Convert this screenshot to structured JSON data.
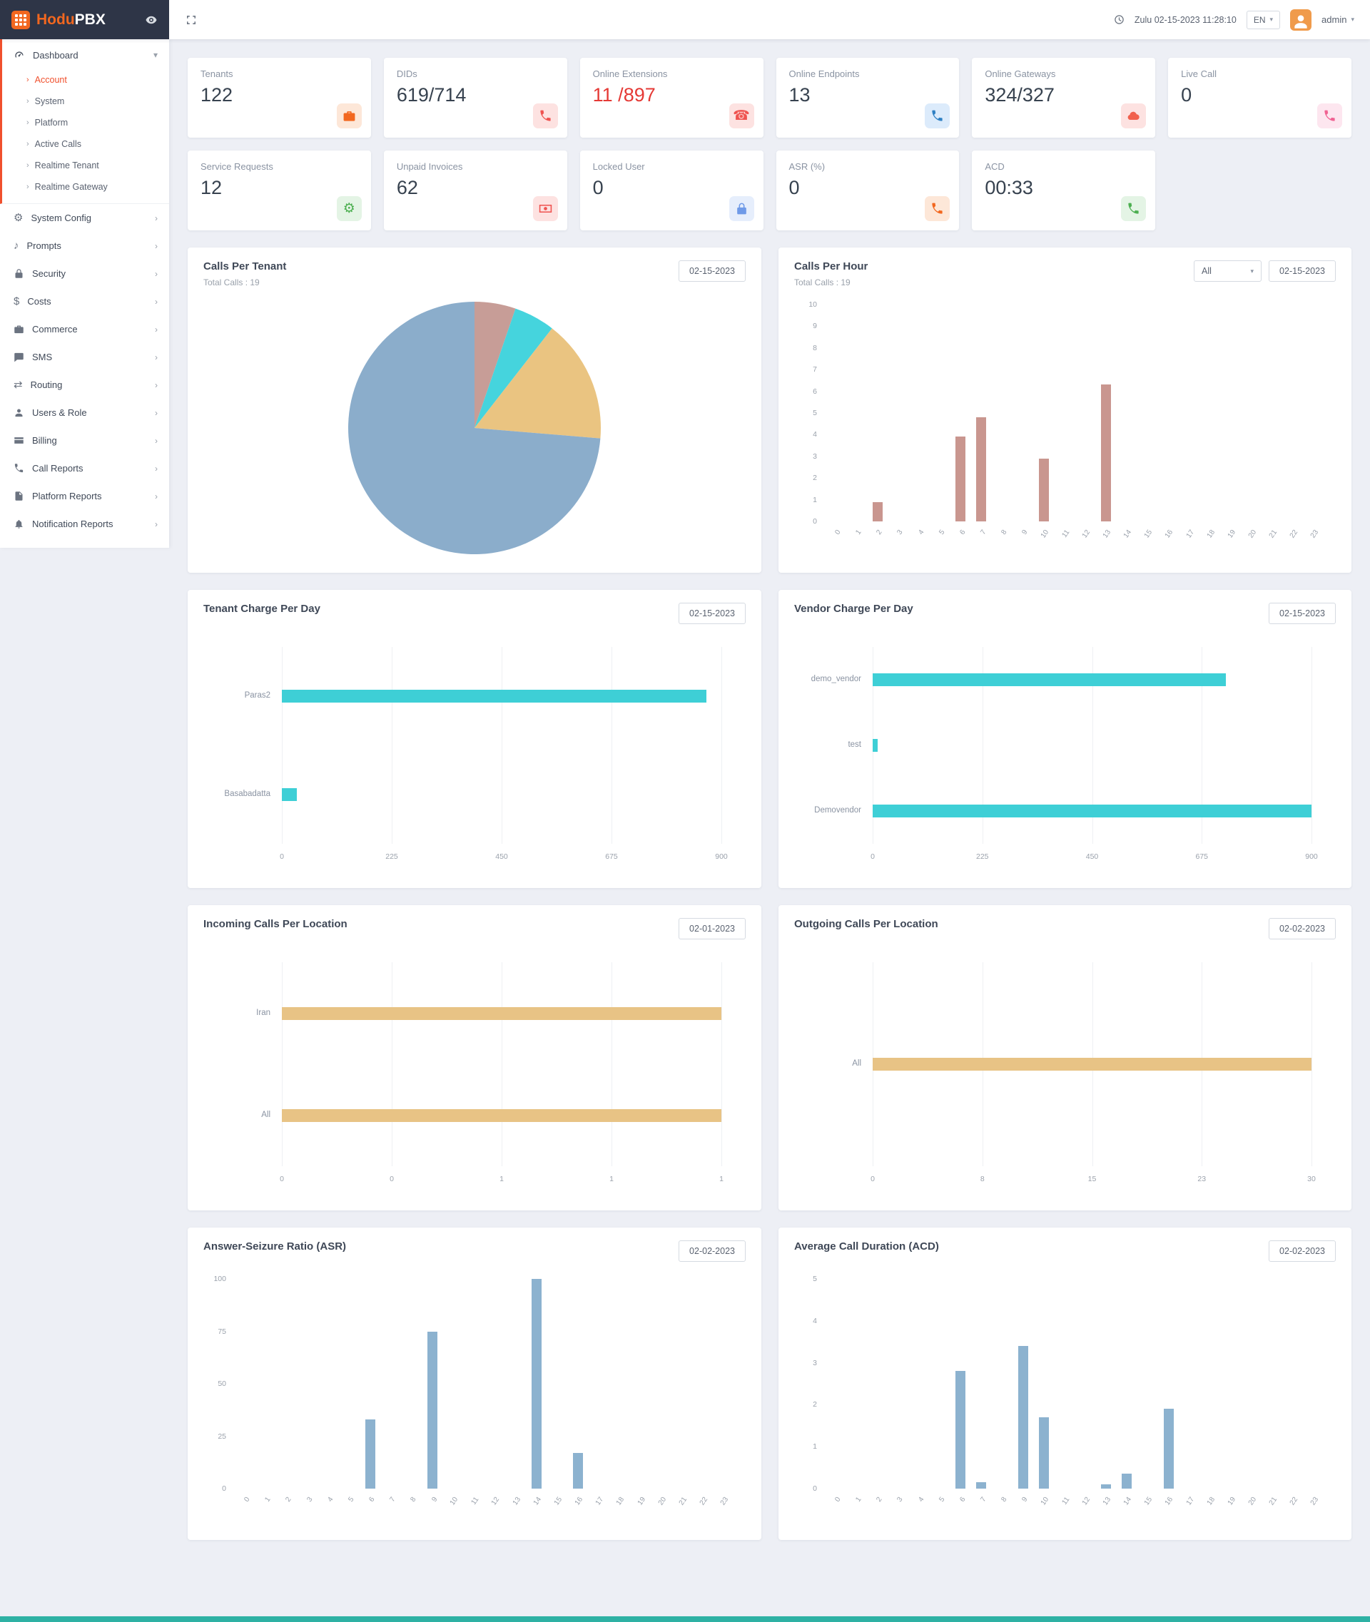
{
  "app": {
    "name_part1": "Hodu",
    "name_part2": "PBX"
  },
  "theme": {
    "accent": "#f2671f",
    "active_red": "#f0502d",
    "sidebar_dark": "#2e3547",
    "footer": "#2eb1a4"
  },
  "header": {
    "datetime": "Zulu 02-15-2023 11:28:10",
    "language": "EN",
    "username": "admin"
  },
  "sidebar": {
    "items": [
      {
        "label": "Dashboard",
        "icon": "gauge",
        "expanded": true,
        "children": [
          {
            "label": "Account",
            "active": true
          },
          {
            "label": "System"
          },
          {
            "label": "Platform"
          },
          {
            "label": "Active Calls"
          },
          {
            "label": "Realtime Tenant"
          },
          {
            "label": "Realtime Gateway"
          }
        ]
      },
      {
        "label": "System Config",
        "icon": "gears"
      },
      {
        "label": "Prompts",
        "icon": "music"
      },
      {
        "label": "Security",
        "icon": "lock"
      },
      {
        "label": "Costs",
        "icon": "dollar"
      },
      {
        "label": "Commerce",
        "icon": "briefcase"
      },
      {
        "label": "SMS",
        "icon": "chat"
      },
      {
        "label": "Routing",
        "icon": "routing"
      },
      {
        "label": "Users & Role",
        "icon": "user"
      },
      {
        "label": "Billing",
        "icon": "card"
      },
      {
        "label": "Call Reports",
        "icon": "phone"
      },
      {
        "label": "Platform Reports",
        "icon": "file"
      },
      {
        "label": "Notification Reports",
        "icon": "bell"
      }
    ]
  },
  "stats": {
    "row1": [
      {
        "label": "Tenants",
        "value": "122",
        "icon": "briefcase",
        "icon_color": "#f2671f",
        "icon_bg": "#fde7d8"
      },
      {
        "label": "DIDs",
        "value": "619/714",
        "icon": "phone",
        "icon_color": "#ef5350",
        "icon_bg": "#fde2e1"
      },
      {
        "label": "Online Extensions",
        "value": "11 /897",
        "value_color": "#e53935",
        "icon": "telephone",
        "icon_color": "#ef5350",
        "icon_bg": "#fde2e1"
      },
      {
        "label": "Online Endpoints",
        "value": "13",
        "icon": "phone",
        "icon_color": "#2f80c3",
        "icon_bg": "#dcebfb"
      },
      {
        "label": "Online Gateways",
        "value": "324/327",
        "icon": "cloud",
        "icon_color": "#f1604d",
        "icon_bg": "#fde2e1"
      },
      {
        "label": "Live Call",
        "value": "0",
        "icon": "phone",
        "icon_color": "#f06292",
        "icon_bg": "#fde6ef"
      }
    ],
    "row2": [
      {
        "label": "Service Requests",
        "value": "12",
        "icon": "gears",
        "icon_color": "#4caf50",
        "icon_bg": "#e4f4e5"
      },
      {
        "label": "Unpaid Invoices",
        "value": "62",
        "icon": "cash",
        "icon_color": "#ef5350",
        "icon_bg": "#fde2e1"
      },
      {
        "label": "Locked User",
        "value": "0",
        "icon": "lock",
        "icon_color": "#6f9ae8",
        "icon_bg": "#e6eefc"
      },
      {
        "label": "ASR (%)",
        "value": "0",
        "icon": "phone",
        "icon_color": "#f2671f",
        "icon_bg": "#fde7d8"
      },
      {
        "label": "ACD",
        "value": "00:33",
        "icon": "phone",
        "icon_color": "#4caf50",
        "icon_bg": "#e4f4e5"
      }
    ]
  },
  "chart_data": [
    {
      "type": "pie",
      "title": "Calls Per Tenant",
      "subtitle": "Total Calls : 19",
      "date": "02-15-2023",
      "total_calls": 19,
      "slices": [
        {
          "value": 1,
          "color": "#c79d97"
        },
        {
          "value": 1,
          "color": "#45d4dd"
        },
        {
          "value": 3,
          "color": "#eac481"
        },
        {
          "value": 14,
          "color": "#8badcb"
        }
      ]
    },
    {
      "type": "vbar",
      "title": "Calls Per Hour",
      "subtitle": "Total Calls : 19",
      "date": "02-15-2023",
      "filter": "All",
      "categories": [
        "0",
        "1",
        "2",
        "3",
        "4",
        "5",
        "6",
        "7",
        "8",
        "9",
        "10",
        "11",
        "12",
        "13",
        "14",
        "15",
        "16",
        "17",
        "18",
        "19",
        "20",
        "21",
        "22",
        "23"
      ],
      "values": [
        0,
        0,
        0.9,
        0,
        0,
        0,
        3.9,
        4.8,
        0,
        0,
        2.9,
        0,
        0,
        6.3,
        0,
        0,
        0,
        0,
        0,
        0,
        0,
        0,
        0,
        0
      ],
      "yticks": [
        0,
        1,
        2,
        3,
        4,
        5,
        6,
        7,
        8,
        9,
        10
      ],
      "color": "#c9968f"
    },
    {
      "type": "hbar",
      "title": "Tenant Charge Per Day",
      "date": "02-15-2023",
      "categories": [
        "Paras2",
        "Basabadatta"
      ],
      "values": [
        870,
        30
      ],
      "xticks": [
        "0",
        "225",
        "450",
        "675",
        "900"
      ],
      "xmax": 900,
      "color": "#3ecfd6"
    },
    {
      "type": "hbar",
      "title": "Vendor Charge Per Day",
      "date": "02-15-2023",
      "categories": [
        "demo_vendor",
        "test",
        "Demovendor"
      ],
      "values": [
        725,
        10,
        900
      ],
      "xticks": [
        "0",
        "225",
        "450",
        "675",
        "900"
      ],
      "xmax": 900,
      "color": "#3ecfd6"
    },
    {
      "type": "hbar",
      "title": "Incoming Calls Per Location",
      "date": "02-01-2023",
      "categories": [
        "Iran",
        "All"
      ],
      "values": [
        1,
        1
      ],
      "xticks": [
        "0",
        "0",
        "1",
        "1",
        "1"
      ],
      "xmax": 1,
      "color": "#e8c385"
    },
    {
      "type": "hbar",
      "title": "Outgoing Calls Per Location",
      "date": "02-02-2023",
      "categories": [
        "All"
      ],
      "values": [
        30
      ],
      "xticks": [
        "0",
        "8",
        "15",
        "23",
        "30"
      ],
      "xmax": 30,
      "color": "#e8c385"
    },
    {
      "type": "vbar",
      "title": "Answer-Seizure Ratio (ASR)",
      "date": "02-02-2023",
      "categories": [
        "0",
        "1",
        "2",
        "3",
        "4",
        "5",
        "6",
        "7",
        "8",
        "9",
        "10",
        "11",
        "12",
        "13",
        "14",
        "15",
        "16",
        "17",
        "18",
        "19",
        "20",
        "21",
        "22",
        "23"
      ],
      "values": [
        0,
        0,
        0,
        0,
        0,
        0,
        33,
        0,
        0,
        75,
        0,
        0,
        0,
        0,
        100,
        0,
        17,
        0,
        0,
        0,
        0,
        0,
        0,
        0
      ],
      "yticks": [
        0,
        25,
        50,
        75,
        100
      ],
      "color": "#8cb2cf"
    },
    {
      "type": "vbar",
      "title": "Average Call Duration (ACD)",
      "date": "02-02-2023",
      "categories": [
        "0",
        "1",
        "2",
        "3",
        "4",
        "5",
        "6",
        "7",
        "8",
        "9",
        "10",
        "11",
        "12",
        "13",
        "14",
        "15",
        "16",
        "17",
        "18",
        "19",
        "20",
        "21",
        "22",
        "23"
      ],
      "values": [
        0,
        0,
        0,
        0,
        0,
        0,
        2.8,
        0.15,
        0,
        3.4,
        1.7,
        0,
        0,
        0.1,
        0.35,
        0,
        1.9,
        0,
        0,
        0,
        0,
        0,
        0,
        0
      ],
      "yticks": [
        0,
        1,
        2,
        3,
        4,
        5
      ],
      "color": "#8cb2cf"
    }
  ]
}
